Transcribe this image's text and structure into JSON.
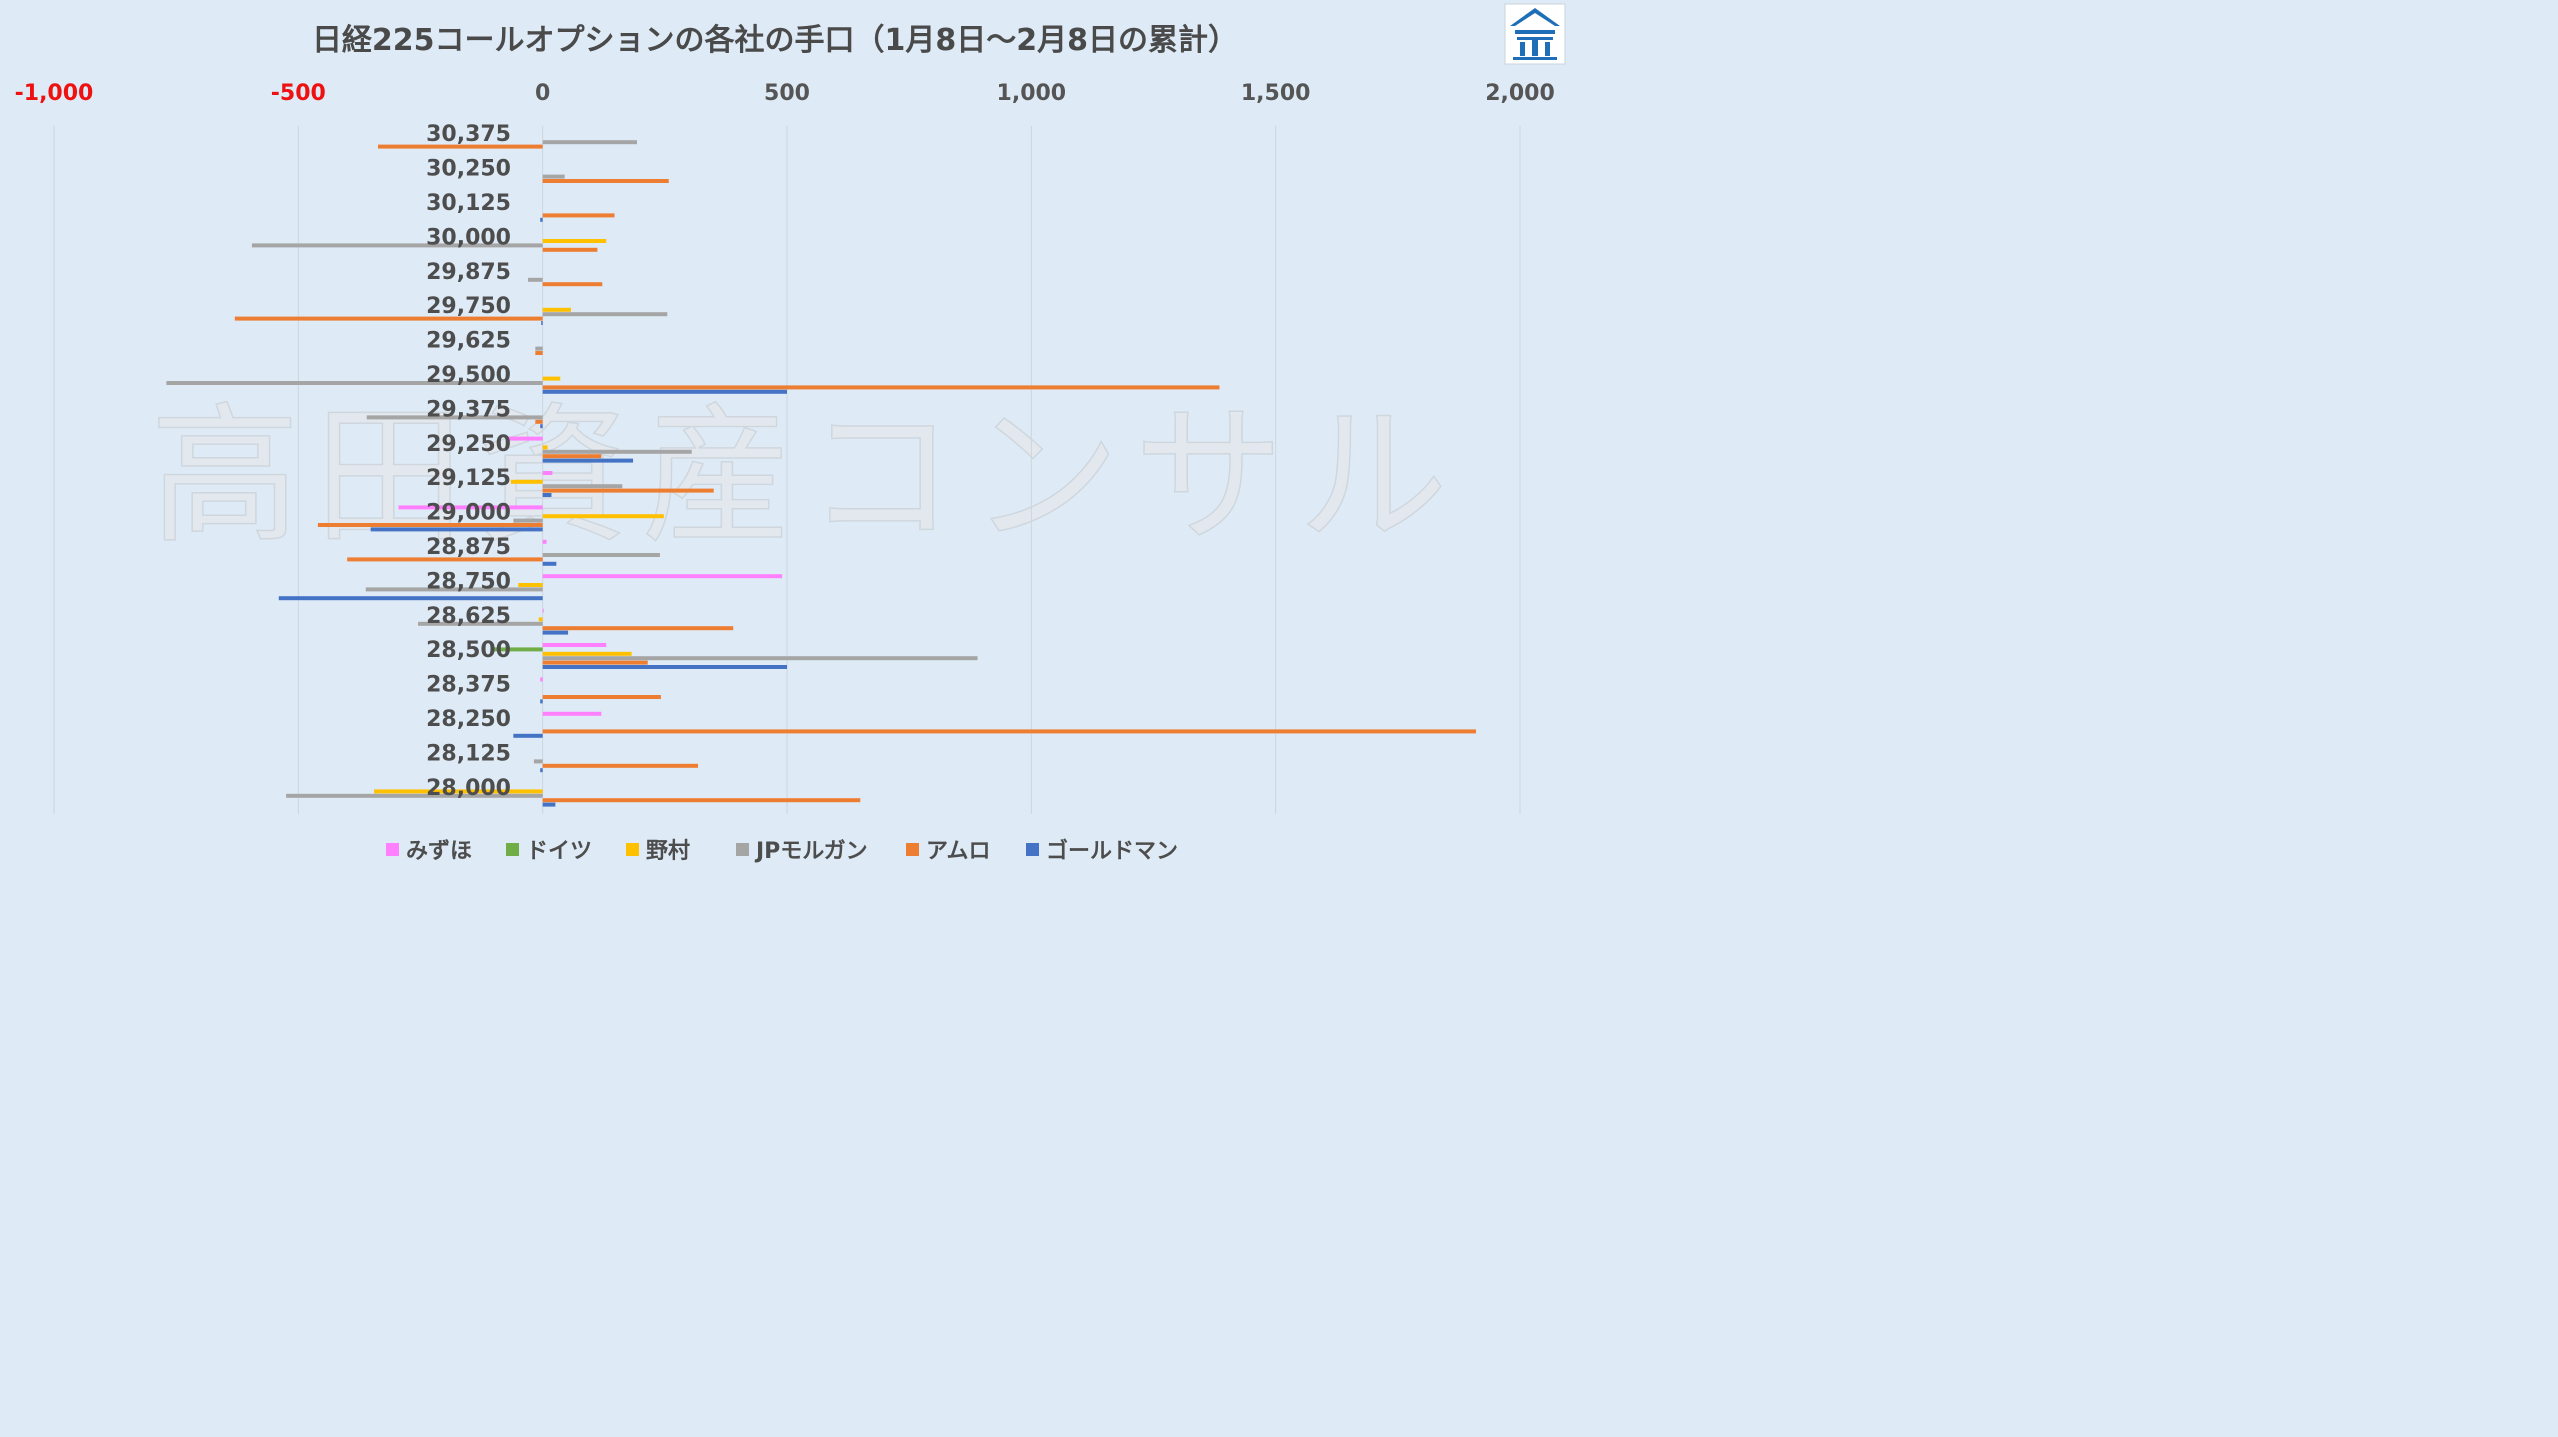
{
  "chart_data": {
    "type": "bar",
    "orientation": "horizontal",
    "title": "日経225コールオプションの各社の手口（1月8日～2月8日の累計）",
    "xlim": [
      -1000,
      2000
    ],
    "xticks": [
      -1000,
      -500,
      0,
      500,
      1000,
      1500,
      2000
    ],
    "xtick_labels": [
      "-1,000",
      "-500",
      "0",
      "500",
      "1,000",
      "1,500",
      "2,000"
    ],
    "negative_tick_color": "#ee1111",
    "positive_tick_color": "#555555",
    "grid": true,
    "legend_position": "bottom",
    "categories": [
      "30,375",
      "30,250",
      "30,125",
      "30,000",
      "29,875",
      "29,750",
      "29,625",
      "29,500",
      "29,375",
      "29,250",
      "29,125",
      "29,000",
      "28,875",
      "28,750",
      "28,625",
      "28,500",
      "28,375",
      "28,250",
      "28,125",
      "28,000"
    ],
    "series": [
      {
        "name": "みずほ",
        "color": "#ff80ff",
        "values": [
          0,
          0,
          0,
          0,
          0,
          0,
          0,
          0,
          0,
          -70,
          20,
          -295,
          8,
          490,
          2,
          130,
          -5,
          120,
          0,
          0
        ]
      },
      {
        "name": "ドイツ",
        "color": "#70ad47",
        "values": [
          0,
          0,
          0,
          0,
          0,
          0,
          0,
          0,
          0,
          0,
          0,
          0,
          0,
          0,
          0,
          -100,
          0,
          0,
          0,
          0
        ]
      },
      {
        "name": "野村",
        "color": "#ffc000",
        "values": [
          0,
          0,
          0,
          130,
          0,
          58,
          0,
          36,
          0,
          10,
          -65,
          248,
          0,
          -50,
          -8,
          182,
          0,
          0,
          0,
          -345
        ]
      },
      {
        "name": "JPモルガン",
        "color": "#a5a5a5",
        "values": [
          193,
          45,
          0,
          -595,
          -30,
          255,
          -15,
          -770,
          -360,
          305,
          163,
          -60,
          240,
          -362,
          -255,
          890,
          0,
          0,
          -18,
          -525
        ]
      },
      {
        "name": "アムロ",
        "color": "#ed7d31",
        "values": [
          -337,
          258,
          147,
          112,
          122,
          -630,
          -15,
          1385,
          -15,
          120,
          350,
          -460,
          -400,
          0,
          390,
          215,
          242,
          1910,
          318,
          650
        ]
      },
      {
        "name": "ゴールドマン",
        "color": "#4472c4",
        "values": [
          0,
          0,
          -5,
          0,
          0,
          -3,
          0,
          500,
          -5,
          185,
          18,
          -352,
          28,
          -540,
          52,
          500,
          -5,
          -60,
          -5,
          26
        ]
      }
    ]
  },
  "watermark": {
    "text": "高田資産コンサル"
  },
  "logo": {
    "icon": "building-logo-icon",
    "color": "#1f6fb8"
  }
}
